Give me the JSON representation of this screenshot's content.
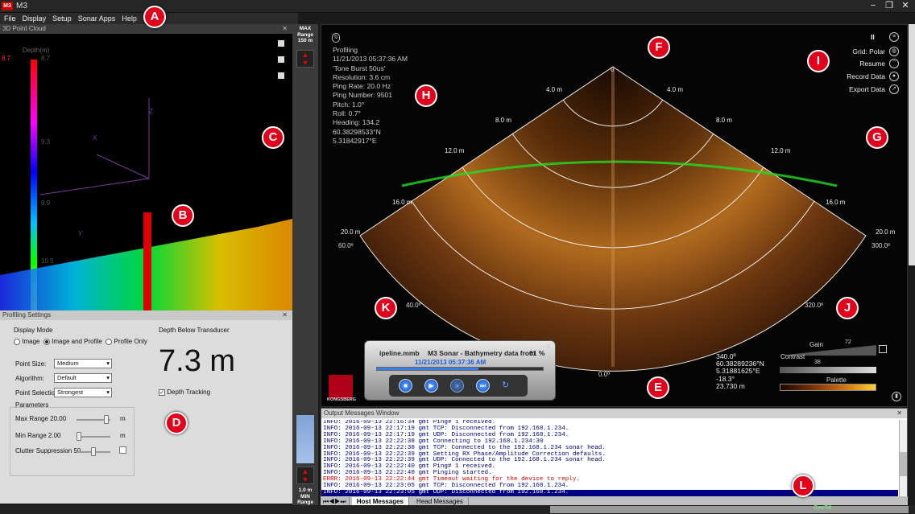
{
  "app": {
    "title": "M3",
    "logo_text": "M3",
    "win_min": "−",
    "win_max": "❐",
    "win_close": "✕"
  },
  "menu": [
    "File",
    "Display",
    "Setup",
    "Sonar Apps",
    "Help"
  ],
  "point_cloud": {
    "title": "3D Point Cloud",
    "depth_label": "Depth(m)",
    "scale_labels": [
      "8.7",
      "9.3",
      "9.9",
      "10.5"
    ],
    "scale_top_value": "8.7",
    "axis_labels": {
      "x": "X",
      "y": "Y",
      "z": "Z"
    }
  },
  "profiling_settings": {
    "title": "Profiling Settings",
    "display_mode_label": "Display Mode",
    "display_modes": [
      "Image",
      "Image and Profile",
      "Profile Only"
    ],
    "selected_mode": "Image and Profile",
    "point_size_label": "Point Size:",
    "point_size_value": "Medium",
    "algorithm_label": "Algorithm:",
    "algorithm_value": "Default",
    "point_selection_label": "Point Selection:",
    "point_selection_value": "Strongest",
    "parameters_label": "Parameters",
    "max_range_label": "Max Range 20.00",
    "min_range_label": "Min Range 2.00",
    "clutter_label": "Clutter Suppression 50",
    "unit_m": "m",
    "depth_below_label": "Depth Below Transducer",
    "depth_value": "7.3 m",
    "depth_tracking_label": "Depth Tracking",
    "depth_tracking_checked": true
  },
  "range": {
    "max_label": "MAX\nRange\n150 m",
    "min_label": "1.0 m\nMIN\nRange"
  },
  "sonar": {
    "info": [
      "Profiling",
      "11/21/2013 05:37:36 AM",
      "'Tone Burst 50us'",
      "Resolution: 3.6 cm",
      "Ping Rate: 20.0 Hz",
      "Ping Number: 9501",
      "Pitch:  1.0°",
      "Roll:  0.7°",
      "Heading: 134.2",
      "60.38298533°N",
      "5.31842917°E"
    ],
    "controls": {
      "pause": "II",
      "grid": "Grid: Polar",
      "resume": "Resume",
      "record": "Record Data",
      "export": "Export Data"
    },
    "range_labels": [
      "4.0 m",
      "8.0 m",
      "12.0 m",
      "16.0 m",
      "20.0 m"
    ],
    "angle_labels": {
      "top": "0",
      "left_60": "60.0º",
      "right_300": "300.0º",
      "left_40": "40.0º",
      "right_320": "320.0º",
      "bottom": "0.0º"
    },
    "cursor_readout": [
      "340.0º",
      "60.38289236°N",
      "5.31881625°E",
      "-18.3°",
      "23.730 m"
    ],
    "gain_label": "Gain",
    "gain_value": "72",
    "contrast_label": "Contrast",
    "contrast_value": "38",
    "palette_label": "Palette",
    "brand": "KONGSBERG"
  },
  "player": {
    "filename": "ipeline.mmb",
    "title": "M3 Sonar - Bathymetry data from",
    "percent": "61 %",
    "timestamp": "11/21/2013 05:37:36 AM",
    "progress": 0.61
  },
  "output": {
    "title": "Output Messages Window",
    "lines": [
      {
        "text": "INFO: 2016-09-13 22:16:34 gmt Ping# 1 received.",
        "type": "info"
      },
      {
        "text": "INFO: 2016-09-13 22:17:19 gmt TCP: Disconnected from 192.168.1.234.",
        "type": "info"
      },
      {
        "text": "INFO: 2016-09-13 22:17:19 gmt UDP: Disconnected from 192.168.1.234.",
        "type": "info"
      },
      {
        "text": "INFO: 2016-09-13 22:22:38 gmt Connecting to 192.168.1.234:30",
        "type": "info"
      },
      {
        "text": "INFO: 2016-09-13 22:22:38 gmt TCP: Connected to the 192.168.1.234 sonar head.",
        "type": "info"
      },
      {
        "text": "INFO: 2016-09-13 22:22:39 gmt Setting RX Phase/Amplitude Correction defaults.",
        "type": "info"
      },
      {
        "text": "INFO: 2016-09-13 22:22:39 gmt UDP: Connected to the 192.168.1.234 sonar head.",
        "type": "info"
      },
      {
        "text": "INFO: 2016-09-13 22:22:40 gmt Ping# 1 received.",
        "type": "info"
      },
      {
        "text": "INFO: 2016-09-13 22:22:40 gmt Pinging started.",
        "type": "info"
      },
      {
        "text": "ERRR: 2016-09-13 22:22:44 gmt Timeout waiting for the device to reply.",
        "type": "error"
      },
      {
        "text": "INFO: 2016-09-13 22:23:05 gmt TCP: Disconnected from 192.168.1.234.",
        "type": "info"
      },
      {
        "text": "INFO: 2016-09-13 22:23:05 gmt UDP: Disconnected from 192.168.1.234.",
        "type": "selected"
      }
    ],
    "tabs": [
      "Host Messages",
      "Head Messages"
    ]
  },
  "status": {
    "geotiff": "GeoTiff"
  },
  "callouts": [
    "A",
    "B",
    "C",
    "D",
    "E",
    "F",
    "G",
    "H",
    "I",
    "J",
    "K",
    "L"
  ],
  "colors": {
    "callout": "#e2001a",
    "accent_blue": "#1e5bd6"
  }
}
